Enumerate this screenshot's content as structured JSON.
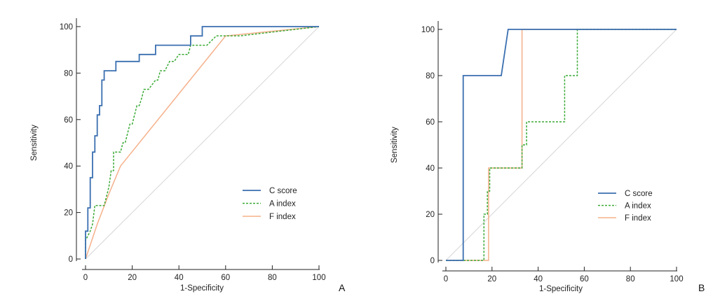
{
  "colors": {
    "c_score": "#3a6fb0",
    "a_index": "#3aaa35",
    "f_index": "#f5b08a",
    "diagonal": "#d6d6d6",
    "axis": "#222222"
  },
  "chart_data": [
    {
      "type": "line",
      "panel_label": "A",
      "xlabel": "1-Specificity",
      "ylabel": "Sensitivity",
      "xlim": [
        0,
        100
      ],
      "ylim": [
        0,
        100
      ],
      "xticks": [
        "0",
        "20",
        "40",
        "60",
        "80",
        "100"
      ],
      "yticks": [
        "0",
        "20",
        "40",
        "60",
        "80",
        "100"
      ],
      "legend_position": "bottom-right",
      "diagonal": true,
      "series": [
        {
          "name": "C score",
          "style": "solid",
          "x": [
            0,
            0,
            1,
            1,
            2,
            2,
            3,
            3,
            4,
            4,
            5,
            5,
            6,
            6,
            7,
            7,
            8,
            8,
            9,
            9,
            13,
            13,
            23,
            23,
            30,
            30,
            45,
            45,
            50,
            50,
            100
          ],
          "y": [
            0,
            12,
            12,
            22,
            22,
            35,
            35,
            46,
            46,
            53,
            53,
            62,
            62,
            66,
            66,
            77,
            77,
            81,
            81,
            81,
            81,
            85,
            85,
            88,
            88,
            92,
            92,
            96,
            96,
            100,
            100
          ]
        },
        {
          "name": "A index",
          "style": "dashed",
          "x": [
            0,
            0,
            2,
            3,
            4,
            5,
            6,
            8,
            9,
            10,
            11,
            12,
            12,
            15,
            16,
            17,
            18,
            19,
            20,
            21,
            22,
            23,
            24,
            25,
            26,
            27,
            30,
            31,
            32,
            33,
            34,
            36,
            37,
            38,
            40,
            41,
            42,
            43,
            44,
            45,
            47,
            48,
            52,
            56,
            66,
            100
          ],
          "y": [
            0,
            8,
            12,
            15,
            23,
            23,
            23,
            23,
            27,
            31,
            38,
            38,
            46,
            46,
            50,
            50,
            54,
            58,
            58,
            62,
            66,
            66,
            69,
            73,
            73,
            73,
            77,
            77,
            81,
            81,
            81,
            85,
            85,
            85,
            88,
            88,
            88,
            88,
            88,
            92,
            92,
            92,
            92,
            96,
            96,
            100
          ]
        },
        {
          "name": "F index",
          "style": "solid",
          "x": [
            0,
            5,
            10,
            15,
            60,
            100
          ],
          "y": [
            0,
            15,
            28,
            40,
            96,
            100
          ]
        }
      ]
    },
    {
      "type": "line",
      "panel_label": "B",
      "xlabel": "1-Specificity",
      "ylabel": "Sensitivity",
      "xlim": [
        0,
        100
      ],
      "ylim": [
        0,
        100
      ],
      "xticks": [
        "0",
        "20",
        "40",
        "60",
        "80",
        "100"
      ],
      "yticks": [
        "0",
        "20",
        "40",
        "60",
        "80",
        "100"
      ],
      "legend_position": "bottom-right",
      "diagonal": true,
      "series": [
        {
          "name": "C score",
          "style": "solid",
          "x": [
            0,
            7.5,
            7.5,
            24,
            27,
            100
          ],
          "y": [
            0,
            0,
            80,
            80,
            100,
            100
          ]
        },
        {
          "name": "A index",
          "style": "dashed",
          "x": [
            0,
            16.5,
            16.5,
            18,
            18,
            19,
            19,
            33,
            33,
            35,
            35,
            51.5,
            51.5,
            57,
            57,
            100
          ],
          "y": [
            0,
            0,
            20,
            20,
            30,
            30,
            40,
            40,
            50,
            50,
            60,
            60,
            80,
            80,
            100,
            100
          ]
        },
        {
          "name": "F index",
          "style": "solid",
          "x": [
            0,
            18.5,
            18.5,
            33,
            33,
            100
          ],
          "y": [
            0,
            0,
            40,
            40,
            100,
            100
          ]
        }
      ]
    }
  ]
}
